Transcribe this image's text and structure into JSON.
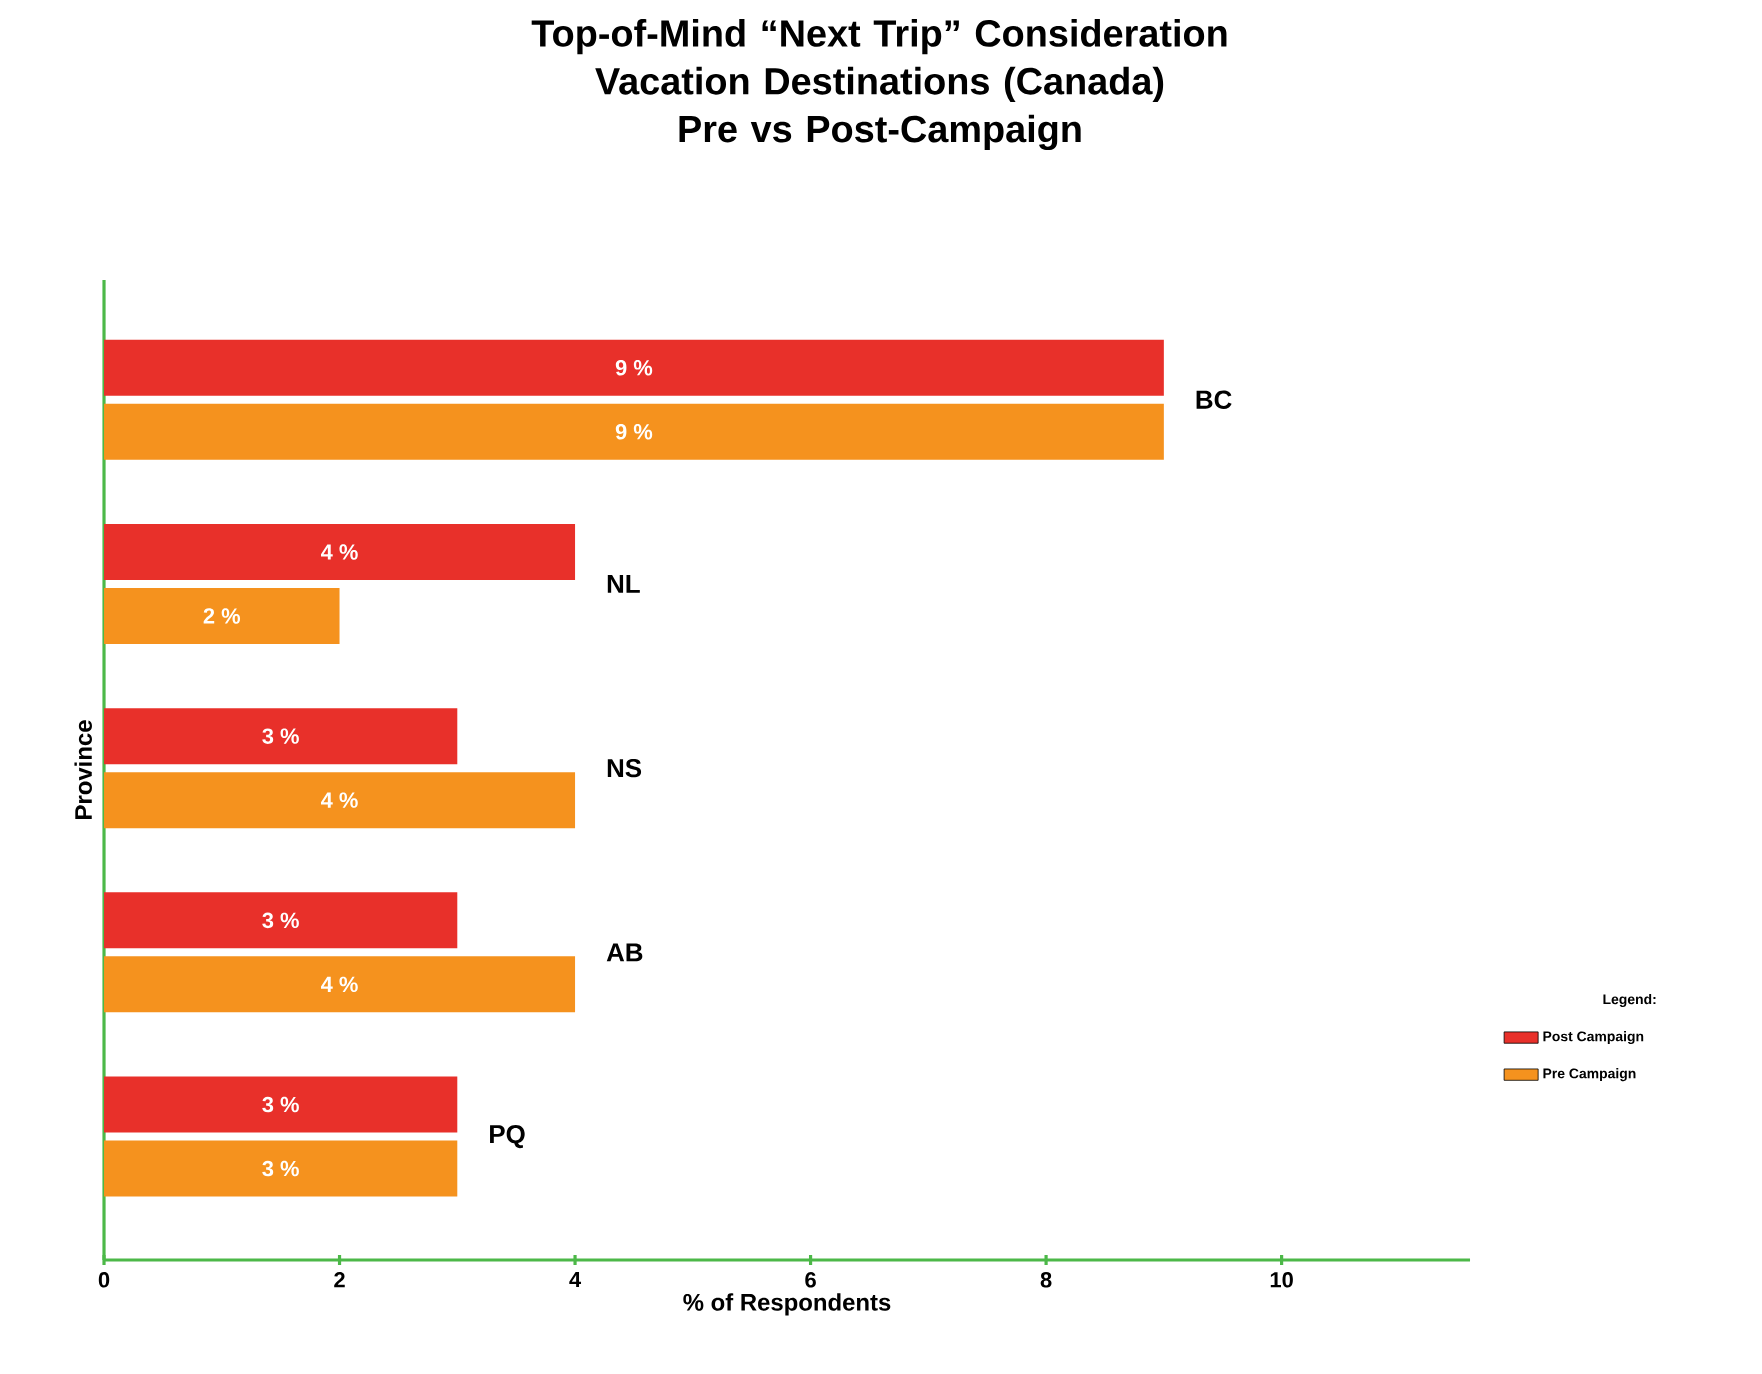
{
  "chart_data": {
    "type": "bar",
    "orientation": "horizontal",
    "title": "Top-of-Mind “Next Trip” Consideration\nVacation Destinations (Canada)\nPre vs Post-Campaign",
    "xlabel": "% of Respondents",
    "ylabel": "Province",
    "categories": [
      "BC",
      "NL",
      "NS",
      "AB",
      "PQ"
    ],
    "series": [
      {
        "name": "Post Campaign",
        "color": "#e8302a",
        "values": [
          9,
          4,
          3,
          3,
          3
        ],
        "value_labels": [
          "9 %",
          "4 %",
          "3 %",
          "3 %",
          "3 %"
        ]
      },
      {
        "name": "Pre Campaign",
        "color": "#f5921e",
        "values": [
          9,
          2,
          4,
          4,
          3
        ],
        "value_labels": [
          "9 %",
          "2 %",
          "4 %",
          "4 %",
          "3 %"
        ]
      }
    ],
    "legend_title": "Legend:",
    "legend": "bottom right",
    "xlim": [
      0,
      11.6
    ],
    "xticks": [
      0,
      2,
      4,
      6,
      8,
      10
    ],
    "grid": false
  }
}
